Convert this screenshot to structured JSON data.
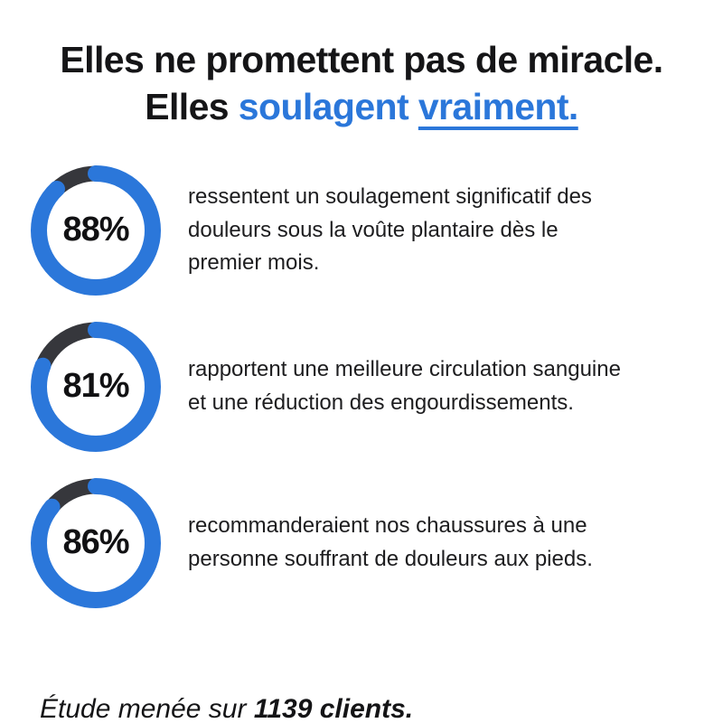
{
  "colors": {
    "accent_blue": "#2b77da",
    "ring_track_dark": "#36373c",
    "text_black": "#151517",
    "background": "#ffffff"
  },
  "title": {
    "line1": "Elles ne promettent pas de miracle.",
    "line2_black": "Elles",
    "line2_blue": "soulagent",
    "line2_blue_underlined": "vraiment."
  },
  "stats": [
    {
      "percent": 88,
      "percent_label": "88%",
      "description_lines": [
        "ressentent un soulagement significatif des",
        "douleurs sous la voûte plantaire dès le",
        "premier mois."
      ]
    },
    {
      "percent": 81,
      "percent_label": "81%",
      "description_lines": [
        "rapportent une meilleure circulation sanguine",
        "et une réduction des engourdissements."
      ]
    },
    {
      "percent": 86,
      "percent_label": "86%",
      "description_lines": [
        "recommanderaient nos chaussures à une",
        "personne souffrant de douleurs aux pieds."
      ]
    }
  ],
  "footnote": {
    "prefix": "Étude menée sur",
    "bold": "1139 clients."
  }
}
